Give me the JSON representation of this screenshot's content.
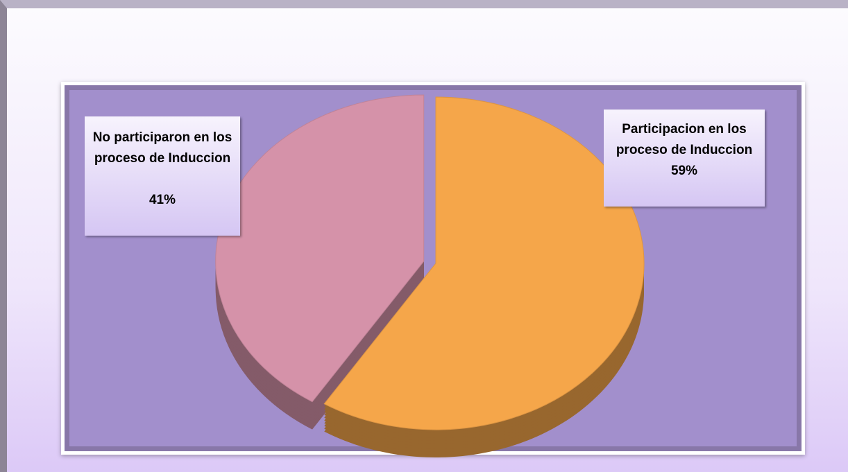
{
  "chart_data": {
    "type": "pie",
    "categories": [
      "Participacion en los proceso de Induccion",
      "No participaron en los proceso de Induccion"
    ],
    "values": [
      59,
      41
    ],
    "value_labels": [
      "59%",
      "41%"
    ],
    "colors": [
      "#f5a64a",
      "#d592a9"
    ]
  }
}
